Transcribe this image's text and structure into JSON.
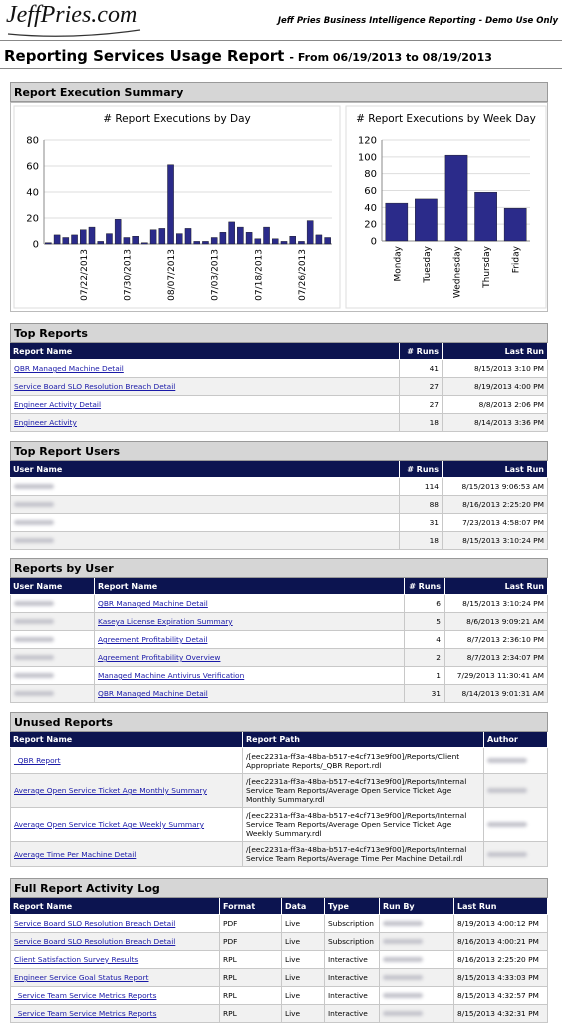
{
  "header": {
    "logo": "JeffPries.com",
    "tagline": "Jeff Pries Business Intelligence Reporting - Demo Use Only"
  },
  "title": "Reporting Services Usage Report",
  "date_range": "- From 06/19/2013 to 08/19/2013",
  "execution_summary": {
    "title": "Report Execution Summary"
  },
  "chart_data": [
    {
      "type": "bar",
      "title": "# Report Executions by Day",
      "color": "#2b2b8a",
      "grid": true,
      "categories": [
        null,
        null,
        null,
        null,
        "07/22/2013",
        null,
        null,
        null,
        null,
        "07/30/2013",
        null,
        null,
        null,
        null,
        "08/07/2013",
        null,
        null,
        null,
        null,
        "07/03/2013",
        null,
        null,
        null,
        null,
        "07/18/2013",
        null,
        null,
        null,
        null,
        "07/26/2013",
        null,
        null,
        null
      ],
      "values": [
        1,
        7,
        5,
        7,
        11,
        13,
        2,
        8,
        19,
        5,
        6,
        1,
        11,
        12,
        61,
        8,
        12,
        2,
        2,
        5,
        9,
        17,
        13,
        9,
        4,
        13,
        4,
        2,
        6,
        2,
        18,
        7,
        5
      ],
      "ylim": [
        0,
        80
      ],
      "yticks": [
        0,
        20,
        40,
        60,
        80
      ]
    },
    {
      "type": "bar",
      "title": "# Report Executions by Week Day",
      "color": "#2b2b8a",
      "grid": true,
      "categories": [
        "Monday",
        "Tuesday",
        "Wednesday",
        "Thursday",
        "Friday"
      ],
      "values": [
        45,
        50,
        102,
        58,
        39
      ],
      "ylim": [
        0,
        120
      ],
      "yticks": [
        0,
        20,
        40,
        60,
        80,
        100,
        120
      ]
    }
  ],
  "sections": [
    {
      "title": "Top Reports",
      "columns": [
        "Report Name",
        "# Runs",
        "Last Run"
      ],
      "rows": [
        [
          "QBR Managed Machine Detail",
          "41",
          "8/15/2013 3:10 PM"
        ],
        [
          "Service Board SLO Resolution Breach Detail",
          "27",
          "8/19/2013 4:00 PM"
        ],
        [
          "Engineer Activity Detail",
          "27",
          "8/8/2013 2:06 PM"
        ],
        [
          "Engineer Activity",
          "18",
          "8/14/2013 3:36 PM"
        ]
      ]
    },
    {
      "title": "Top Report Users",
      "columns": [
        "User Name",
        "# Runs",
        "Last Run"
      ],
      "rows": [
        [
          "114",
          "8/15/2013 9:06:53 AM"
        ],
        [
          "88",
          "8/16/2013 2:25:20 PM"
        ],
        [
          "31",
          "7/23/2013 4:58:07 PM"
        ],
        [
          "18",
          "8/15/2013 3:10:24 PM"
        ]
      ]
    },
    {
      "title": "Reports by User",
      "columns": [
        "User Name",
        "Report Name",
        "# Runs",
        "Last Run"
      ],
      "rows": [
        [
          "QBR Managed Machine Detail",
          "6",
          "8/15/2013 3:10:24 PM"
        ],
        [
          "Kaseya License Expiration Summary",
          "5",
          "8/6/2013 9:09:21 AM"
        ],
        [
          "Agreement Profitability Detail",
          "4",
          "8/7/2013 2:36:10 PM"
        ],
        [
          "Agreement Profitability Overview",
          "2",
          "8/7/2013 2:34:07 PM"
        ],
        [
          "Managed Machine Antivirus Verification",
          "1",
          "7/29/2013 11:30:41 AM"
        ],
        [
          "QBR Managed Machine Detail",
          "31",
          "8/14/2013 9:01:31 AM"
        ]
      ]
    },
    {
      "title": "Unused Reports",
      "columns": [
        "Report Name",
        "Report Path",
        "Author"
      ],
      "rows": [
        [
          "_QBR Report",
          "/[eec2231a-ff3a-48ba-b517-e4cf713e9f00]/Reports/Client Appropriate Reports/_QBR Report.rdl"
        ],
        [
          "Average Open Service Ticket Age Monthly Summary",
          "/[eec2231a-ff3a-48ba-b517-e4cf713e9f00]/Reports/Internal Service Team Reports/Average Open Service Ticket Age Monthly Summary.rdl"
        ],
        [
          "Average Open Service Ticket Age Weekly Summary",
          "/[eec2231a-ff3a-48ba-b517-e4cf713e9f00]/Reports/Internal Service Team Reports/Average Open Service Ticket Age Weekly Summary.rdl"
        ],
        [
          "Average Time Per Machine Detail",
          "/[eec2231a-ff3a-48ba-b517-e4cf713e9f00]/Reports/Internal Service Team Reports/Average Time Per Machine Detail.rdl"
        ]
      ]
    },
    {
      "title": "Full Report Activity Log",
      "columns": [
        "Report Name",
        "Format",
        "Data",
        "Type",
        "Run By",
        "Last Run"
      ],
      "rows": [
        [
          "Service Board SLO Resolution Breach Detail",
          "PDF",
          "Live",
          "Subscription",
          "8/19/2013 4:00:12 PM"
        ],
        [
          "Service Board SLO Resolution Breach Detail",
          "PDF",
          "Live",
          "Subscription",
          "8/16/2013 4:00:21 PM"
        ],
        [
          "Client Satisfaction Survey Results",
          "RPL",
          "Live",
          "Interactive",
          "8/16/2013 2:25:20 PM"
        ],
        [
          "Engineer Service Goal Status Report",
          "RPL",
          "Live",
          "Interactive",
          "8/15/2013 4:33:03 PM"
        ],
        [
          "_Service Team Service Metrics Reports",
          "RPL",
          "Live",
          "Interactive",
          "8/15/2013 4:32:57 PM"
        ],
        [
          "_Service Team Service Metrics Reports",
          "RPL",
          "Live",
          "Interactive",
          "8/15/2013 4:32:31 PM"
        ]
      ]
    }
  ]
}
